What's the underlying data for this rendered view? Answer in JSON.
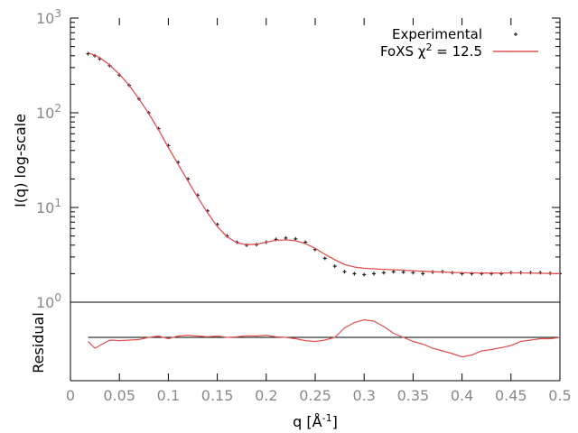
{
  "chart_data": {
    "type": "line",
    "upper_panel": {
      "ylabel": "I(q) log-scale",
      "yscale": "log",
      "ylim": [
        1,
        1000
      ],
      "yticks": [
        {
          "base": "10",
          "exp": "0",
          "value": 1
        },
        {
          "base": "10",
          "exp": "1",
          "value": 10
        },
        {
          "base": "10",
          "exp": "2",
          "value": 100
        },
        {
          "base": "10",
          "exp": "3",
          "value": 1000
        }
      ],
      "legend": {
        "position": "top-right",
        "experimental_label": "Experimental",
        "fit_label_prefix": "FoXS χ",
        "fit_label_exp": "2",
        "fit_label_suffix": " = 12.5"
      },
      "series": [
        {
          "name": "Experimental",
          "style": "points",
          "color": "#222222",
          "x": [
            0.018,
            0.025,
            0.03,
            0.04,
            0.05,
            0.06,
            0.07,
            0.08,
            0.09,
            0.1,
            0.11,
            0.12,
            0.13,
            0.14,
            0.15,
            0.16,
            0.17,
            0.18,
            0.19,
            0.2,
            0.21,
            0.22,
            0.23,
            0.24,
            0.25,
            0.26,
            0.27,
            0.28,
            0.29,
            0.3,
            0.31,
            0.32,
            0.33,
            0.34,
            0.35,
            0.36,
            0.37,
            0.38,
            0.39,
            0.4,
            0.41,
            0.42,
            0.43,
            0.44,
            0.45,
            0.46,
            0.47,
            0.48,
            0.49,
            0.5
          ],
          "y": [
            420,
            400,
            370,
            315,
            250,
            195,
            140,
            100,
            68,
            45,
            30,
            20,
            13.5,
            9.2,
            6.6,
            5.0,
            4.3,
            4.0,
            4.05,
            4.3,
            4.6,
            4.75,
            4.65,
            4.3,
            3.6,
            2.9,
            2.4,
            2.1,
            2.0,
            1.95,
            2.0,
            2.05,
            2.1,
            2.08,
            2.05,
            2.0,
            2.08,
            2.1,
            2.05,
            2.0,
            2.0,
            2.0,
            2.0,
            2.0,
            2.05,
            2.05,
            2.05,
            2.05,
            2.02,
            2.0
          ]
        },
        {
          "name": "FoXS χ2 = 12.5",
          "style": "line",
          "color": "#e05050",
          "x": [
            0.018,
            0.025,
            0.03,
            0.04,
            0.05,
            0.06,
            0.07,
            0.08,
            0.09,
            0.1,
            0.11,
            0.12,
            0.13,
            0.14,
            0.15,
            0.16,
            0.17,
            0.18,
            0.19,
            0.2,
            0.21,
            0.22,
            0.23,
            0.24,
            0.25,
            0.26,
            0.27,
            0.28,
            0.29,
            0.3,
            0.31,
            0.32,
            0.33,
            0.34,
            0.35,
            0.36,
            0.37,
            0.38,
            0.39,
            0.4,
            0.41,
            0.42,
            0.43,
            0.44,
            0.45,
            0.46,
            0.47,
            0.48,
            0.49,
            0.5
          ],
          "y": [
            430,
            405,
            380,
            320,
            255,
            195,
            140,
            98,
            66,
            43,
            28.5,
            19,
            12.8,
            8.8,
            6.3,
            4.9,
            4.25,
            4.05,
            4.1,
            4.3,
            4.5,
            4.55,
            4.45,
            4.15,
            3.7,
            3.2,
            2.8,
            2.5,
            2.35,
            2.28,
            2.25,
            2.22,
            2.2,
            2.18,
            2.15,
            2.12,
            2.1,
            2.08,
            2.06,
            2.05,
            2.04,
            2.03,
            2.03,
            2.03,
            2.04,
            2.04,
            2.03,
            2.02,
            2.01,
            2.0
          ]
        }
      ]
    },
    "residual_panel": {
      "ylabel": "Residual",
      "reference_value": 0,
      "series": [
        {
          "name": "Residual",
          "style": "line",
          "color": "#e05050",
          "x": [
            0.018,
            0.025,
            0.03,
            0.04,
            0.05,
            0.06,
            0.07,
            0.08,
            0.09,
            0.1,
            0.11,
            0.12,
            0.13,
            0.14,
            0.15,
            0.16,
            0.17,
            0.18,
            0.19,
            0.2,
            0.21,
            0.22,
            0.23,
            0.24,
            0.25,
            0.26,
            0.27,
            0.28,
            0.29,
            0.3,
            0.31,
            0.32,
            0.33,
            0.34,
            0.35,
            0.36,
            0.37,
            0.38,
            0.39,
            0.4,
            0.41,
            0.42,
            0.43,
            0.44,
            0.45,
            0.46,
            0.47,
            0.48,
            0.49,
            0.5
          ],
          "y": [
            -0.15,
            -0.4,
            -0.3,
            -0.1,
            -0.12,
            -0.1,
            -0.08,
            0.0,
            0.05,
            -0.05,
            0.05,
            0.08,
            0.05,
            0.02,
            0.05,
            0.0,
            0.02,
            0.06,
            0.05,
            0.08,
            0.02,
            0.0,
            -0.05,
            -0.12,
            -0.15,
            -0.1,
            0.0,
            0.35,
            0.55,
            0.65,
            0.6,
            0.4,
            0.15,
            0.0,
            -0.15,
            -0.25,
            -0.4,
            -0.5,
            -0.6,
            -0.72,
            -0.65,
            -0.5,
            -0.45,
            -0.38,
            -0.3,
            -0.15,
            -0.1,
            -0.05,
            -0.05,
            0.0
          ]
        }
      ]
    },
    "x_axis": {
      "label_prefix": "q [Å",
      "label_exp": "-1",
      "label_suffix": "]",
      "xlim": [
        0,
        0.5
      ],
      "tick_labels": [
        "0",
        "0.05",
        "0.1",
        "0.15",
        "0.2",
        "0.25",
        "0.3",
        "0.35",
        "0.4",
        "0.45",
        "0.5"
      ]
    },
    "grid": false
  }
}
